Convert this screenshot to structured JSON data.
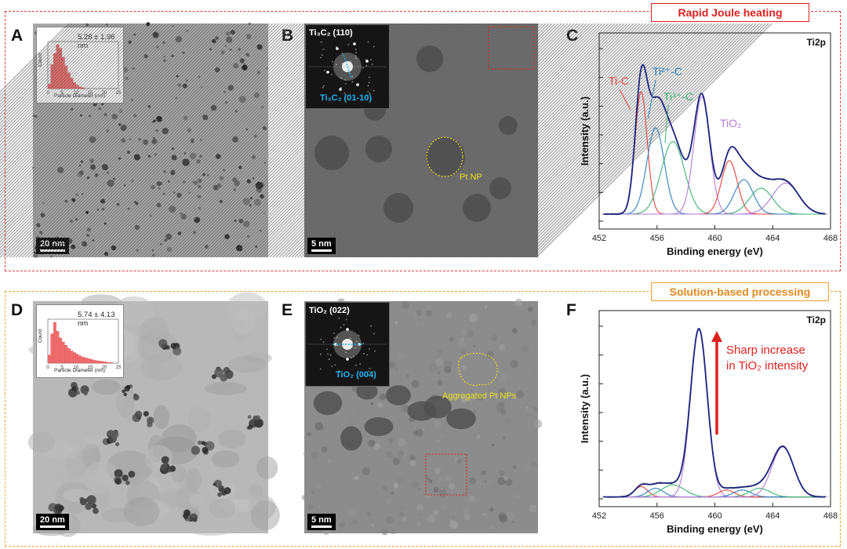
{
  "sections": {
    "top_label": "Rapid Joule heating",
    "bottom_label": "Solution-based processing",
    "top_color": "#e02020",
    "bottom_color": "#f0a030"
  },
  "panels": {
    "A": {
      "label": "A",
      "scale": "20 nm",
      "inset_stat": "5.28 ± 1.96 nm",
      "inset_xlabel": "Particle Diameter (nm)",
      "inset_ylabel": "Count",
      "inset_ticks": [
        "0",
        "5",
        "10",
        "15",
        "20",
        "25"
      ]
    },
    "B": {
      "label": "B",
      "scale": "5 nm",
      "fft_title": "Ti₃C₂ (110)",
      "fft_sub": "Ti₃C₂ (01-10)",
      "np_label": "Pt NP"
    },
    "C": {
      "label": "C"
    },
    "D": {
      "label": "D",
      "scale": "20 nm",
      "inset_stat": "5.74 ± 4.13 nm",
      "inset_xlabel": "Particle Diameter (nm)",
      "inset_ylabel": "Count",
      "inset_ticks": [
        "0",
        "5",
        "10",
        "15",
        "20",
        "25"
      ]
    },
    "E": {
      "label": "E",
      "scale": "5 nm",
      "fft_title": "TiO₂ (022)",
      "fft_sub": "TiO₂ (004)",
      "np_label": "Aggregated Pt NPs"
    },
    "F": {
      "label": "F"
    }
  },
  "histograms": {
    "A": {
      "bins_nm": [
        1,
        2,
        3,
        4,
        5,
        6,
        7,
        8,
        9,
        10,
        11,
        12,
        13
      ],
      "counts": [
        0.1,
        0.55,
        0.8,
        1.0,
        0.92,
        0.72,
        0.52,
        0.36,
        0.24,
        0.14,
        0.08,
        0.04,
        0.02
      ]
    },
    "D": {
      "bins_nm": [
        1,
        2,
        3,
        4,
        5,
        6,
        7,
        8,
        9,
        10,
        11,
        12,
        13,
        14,
        15,
        16,
        17,
        18,
        19,
        20,
        21,
        22,
        23
      ],
      "counts": [
        0.2,
        0.72,
        1.0,
        0.78,
        0.62,
        0.52,
        0.44,
        0.36,
        0.3,
        0.26,
        0.22,
        0.18,
        0.15,
        0.13,
        0.11,
        0.09,
        0.07,
        0.06,
        0.05,
        0.04,
        0.03,
        0.02,
        0.02
      ]
    }
  },
  "chart_data": [
    {
      "type": "line",
      "panel": "C",
      "title": "Ti2p",
      "xlabel": "Binding energy (eV)",
      "ylabel": "Intensity (a.u.)",
      "xlim": [
        452,
        468
      ],
      "x_ticks": [
        452,
        456,
        460,
        464,
        468
      ],
      "background": 0.05,
      "components": [
        {
          "name": "Ti-C",
          "color": "#e8423c",
          "center": 454.9,
          "height": 0.71,
          "sigma": 0.42,
          "label_color": "#e8423c"
        },
        {
          "name": "Ti²⁺-C",
          "color": "#2d7fc1",
          "center": 455.9,
          "height": 0.5,
          "sigma": 0.6,
          "label_color": "#2d7fc1"
        },
        {
          "name": "Ti³⁺-C",
          "color": "#3cb371",
          "center": 457.1,
          "height": 0.42,
          "sigma": 0.8,
          "label_color": "#3cb371"
        },
        {
          "name": "TiO₂",
          "color": "#b57ad9",
          "center": 459.1,
          "height": 0.68,
          "sigma": 0.55,
          "label_color": "#b57ad9"
        },
        {
          "name": "",
          "color": "#e8423c",
          "center": 461.0,
          "height": 0.31,
          "sigma": 0.55
        },
        {
          "name": "",
          "color": "#2d7fc1",
          "center": 462.0,
          "height": 0.2,
          "sigma": 0.65
        },
        {
          "name": "",
          "color": "#3cb371",
          "center": 463.2,
          "height": 0.15,
          "sigma": 0.8
        },
        {
          "name": "",
          "color": "#b57ad9",
          "center": 464.9,
          "height": 0.18,
          "sigma": 0.9
        }
      ],
      "envelope_color": "#1a237e"
    },
    {
      "type": "line",
      "panel": "F",
      "title": "Ti2p",
      "xlabel": "Binding energy (eV)",
      "ylabel": "Intensity (a.u.)",
      "xlim": [
        452,
        468
      ],
      "x_ticks": [
        452,
        456,
        460,
        464,
        468
      ],
      "background": 0.02,
      "annotation": [
        "Sharp increase",
        "in TiO₂ intensity"
      ],
      "annotation_color": "#e02020",
      "components": [
        {
          "name": "",
          "color": "#e8423c",
          "center": 454.9,
          "height": 0.06,
          "sigma": 0.45
        },
        {
          "name": "",
          "color": "#2d7fc1",
          "center": 455.9,
          "height": 0.05,
          "sigma": 0.55
        },
        {
          "name": "",
          "color": "#3cb371",
          "center": 457.1,
          "height": 0.07,
          "sigma": 0.8
        },
        {
          "name": "",
          "color": "#b57ad9",
          "center": 458.9,
          "height": 0.97,
          "sigma": 0.58
        },
        {
          "name": "",
          "color": "#e8423c",
          "center": 460.8,
          "height": 0.04,
          "sigma": 0.55
        },
        {
          "name": "",
          "color": "#2d7fc1",
          "center": 461.9,
          "height": 0.04,
          "sigma": 0.6
        },
        {
          "name": "",
          "color": "#3cb371",
          "center": 463.1,
          "height": 0.05,
          "sigma": 0.7
        },
        {
          "name": "",
          "color": "#b57ad9",
          "center": 464.7,
          "height": 0.29,
          "sigma": 0.75
        }
      ],
      "envelope_color": "#1a237e"
    }
  ]
}
